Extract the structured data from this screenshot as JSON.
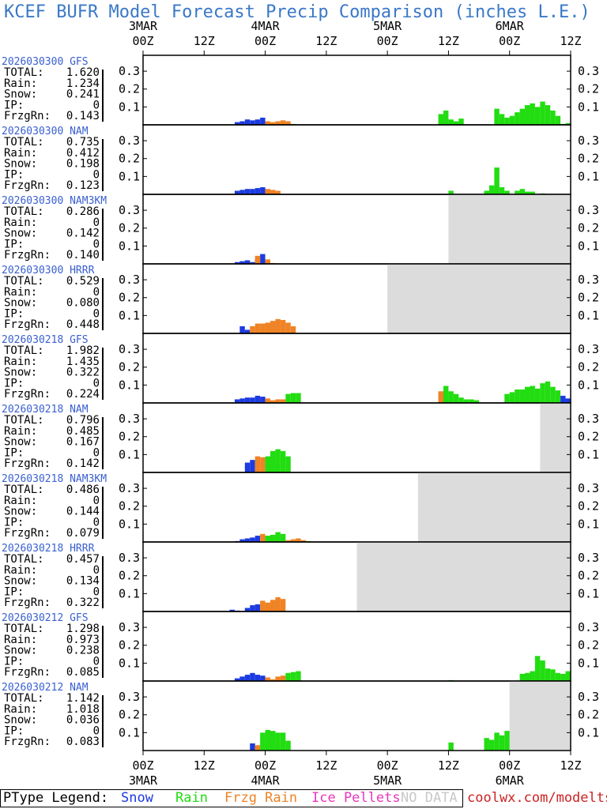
{
  "title": "KCEF BUFR Model Forecast Precip Comparison (inches L.E.)",
  "colors": {
    "title": "#3a78c8",
    "snow": "#1c3be0",
    "rain": "#22dd11",
    "frzg_rain": "#ef8325",
    "ice_pellets": "#ea36bd",
    "no_data": "#dcdcdc",
    "run_label": "#3a60d0",
    "brand": "#cc2222"
  },
  "legend": {
    "prefix": "PType Legend:",
    "items": [
      "Snow",
      "Rain",
      "Frzg Rain",
      "Ice Pellets",
      "NO DATA"
    ]
  },
  "brand": "coolwx.com/modelts",
  "chart_data": {
    "type": "bar",
    "time_ticks_top": [
      "00Z",
      "12Z",
      "00Z",
      "12Z",
      "00Z",
      "12Z",
      "00Z",
      "12Z"
    ],
    "day_labels_top": [
      "3MAR",
      "4MAR",
      "5MAR",
      "6MAR"
    ],
    "time_ticks_bottom": [
      "00Z",
      "12Z",
      "00Z",
      "12Z",
      "00Z",
      "12Z",
      "00Z",
      "12Z"
    ],
    "day_labels_bottom": [
      "3MAR",
      "4MAR",
      "5MAR",
      "6MAR"
    ],
    "x_range_hours": [
      0,
      84
    ],
    "y_ticks": [
      "0.3",
      "0.2",
      "0.1"
    ],
    "ylim": [
      0,
      0.38
    ],
    "stat_labels": [
      "TOTAL:",
      "Rain:",
      "Snow:",
      "IP:",
      "FrzgRn:"
    ],
    "panels": [
      {
        "run": "2026030300 GFS",
        "totals": [
          "1.620",
          "1.234",
          "0.241",
          "0",
          "0.143"
        ],
        "no_data_from_hour": null,
        "bars": {
          "snow": [
            [
              18,
              0.015
            ],
            [
              19,
              0.02
            ],
            [
              20,
              0.03
            ],
            [
              21,
              0.025
            ],
            [
              22,
              0.03
            ],
            [
              23,
              0.04
            ]
          ],
          "frzg_rain": [
            [
              24,
              0.02
            ],
            [
              25,
              0.015
            ],
            [
              26,
              0.02
            ],
            [
              27,
              0.025
            ],
            [
              28,
              0.02
            ]
          ],
          "rain": [
            [
              29,
              0.005
            ],
            [
              58,
              0.06
            ],
            [
              59,
              0.08
            ],
            [
              60,
              0.03
            ],
            [
              61,
              0.02
            ],
            [
              62,
              0.035
            ],
            [
              69,
              0.09
            ],
            [
              70,
              0.06
            ],
            [
              71,
              0.04
            ],
            [
              72,
              0.05
            ],
            [
              73,
              0.07
            ],
            [
              74,
              0.09
            ],
            [
              75,
              0.11
            ],
            [
              76,
              0.12
            ],
            [
              77,
              0.1
            ],
            [
              78,
              0.13
            ],
            [
              79,
              0.11
            ],
            [
              80,
              0.08
            ],
            [
              81,
              0.05
            ],
            [
              82,
              0.005
            ],
            [
              83,
              0.01
            ]
          ]
        }
      },
      {
        "run": "2026030300 NAM",
        "totals": [
          "0.735",
          "0.412",
          "0.198",
          "0",
          "0.123"
        ],
        "no_data_from_hour": null,
        "bars": {
          "snow": [
            [
              18,
              0.02
            ],
            [
              19,
              0.025
            ],
            [
              20,
              0.03
            ],
            [
              21,
              0.03
            ],
            [
              22,
              0.035
            ],
            [
              23,
              0.04
            ]
          ],
          "frzg_rain": [
            [
              24,
              0.03
            ],
            [
              25,
              0.025
            ],
            [
              26,
              0.02
            ]
          ],
          "rain": [
            [
              60,
              0.02
            ],
            [
              67,
              0.02
            ],
            [
              68,
              0.05
            ],
            [
              69,
              0.15
            ],
            [
              70,
              0.04
            ],
            [
              71,
              0.02
            ],
            [
              73,
              0.02
            ],
            [
              74,
              0.03
            ],
            [
              75,
              0.015
            ],
            [
              76,
              0.015
            ],
            [
              78,
              0.005
            ]
          ]
        }
      },
      {
        "run": "2026030300 NAM3KM",
        "totals": [
          "0.286",
          "0",
          "0.142",
          "0",
          "0.140"
        ],
        "no_data_from_hour": 60,
        "bars": {
          "snow": [
            [
              18,
              0.01
            ],
            [
              19,
              0.015
            ],
            [
              20,
              0.02
            ],
            [
              21,
              0.01
            ],
            [
              22,
              0.03
            ],
            [
              23,
              0.055
            ]
          ],
          "frzg_rain": [
            [
              22,
              0.045
            ],
            [
              24,
              0.025
            ],
            [
              25,
              0.005
            ]
          ]
        }
      },
      {
        "run": "2026030300 HRRR",
        "totals": [
          "0.529",
          "0",
          "0.080",
          "0",
          "0.448"
        ],
        "no_data_from_hour": 48,
        "bars": {
          "snow": [
            [
              19,
              0.04
            ],
            [
              20,
              0.02
            ]
          ],
          "frzg_rain": [
            [
              21,
              0.04
            ],
            [
              22,
              0.055
            ],
            [
              23,
              0.055
            ],
            [
              24,
              0.06
            ],
            [
              25,
              0.07
            ],
            [
              26,
              0.08
            ],
            [
              27,
              0.075
            ],
            [
              28,
              0.06
            ],
            [
              29,
              0.04
            ]
          ]
        }
      },
      {
        "run": "2026030218 GFS",
        "totals": [
          "1.982",
          "1.435",
          "0.322",
          "0",
          "0.224"
        ],
        "no_data_from_hour": null,
        "bars": {
          "snow": [
            [
              18,
              0.02
            ],
            [
              19,
              0.025
            ],
            [
              20,
              0.03
            ],
            [
              21,
              0.03
            ],
            [
              22,
              0.04
            ],
            [
              23,
              0.035
            ]
          ],
          "frzg_rain": [
            [
              24,
              0.025
            ],
            [
              25,
              0.015
            ],
            [
              26,
              0.02
            ],
            [
              27,
              0.02
            ],
            [
              58,
              0.065
            ]
          ],
          "rain": [
            [
              28,
              0.05
            ],
            [
              29,
              0.055
            ],
            [
              30,
              0.055
            ],
            [
              59,
              0.095
            ],
            [
              60,
              0.065
            ],
            [
              61,
              0.05
            ],
            [
              62,
              0.03
            ],
            [
              63,
              0.02
            ],
            [
              64,
              0.02
            ],
            [
              65,
              0.015
            ],
            [
              71,
              0.05
            ],
            [
              72,
              0.06
            ],
            [
              73,
              0.075
            ],
            [
              74,
              0.075
            ],
            [
              75,
              0.09
            ],
            [
              76,
              0.095
            ],
            [
              77,
              0.08
            ],
            [
              78,
              0.11
            ],
            [
              79,
              0.12
            ],
            [
              80,
              0.09
            ],
            [
              81,
              0.07
            ]
          ],
          "snow_late": [
            [
              82,
              0.04
            ],
            [
              83,
              0.025
            ]
          ]
        }
      },
      {
        "run": "2026030218 NAM",
        "totals": [
          "0.796",
          "0.485",
          "0.167",
          "0",
          "0.142"
        ],
        "no_data_from_hour": 78,
        "bars": {
          "snow": [
            [
              20,
              0.055
            ],
            [
              21,
              0.07
            ]
          ],
          "frzg_rain": [
            [
              22,
              0.09
            ],
            [
              23,
              0.085
            ]
          ],
          "rain": [
            [
              24,
              0.09
            ],
            [
              25,
              0.12
            ],
            [
              26,
              0.13
            ],
            [
              27,
              0.12
            ],
            [
              28,
              0.09
            ]
          ]
        }
      },
      {
        "run": "2026030218 NAM3KM",
        "totals": [
          "0.486",
          "0",
          "0.144",
          "0",
          "0.079"
        ],
        "no_data_from_hour": 54,
        "bars": {
          "snow": [
            [
              18,
              0.005
            ],
            [
              19,
              0.015
            ],
            [
              20,
              0.02
            ],
            [
              21,
              0.025
            ],
            [
              22,
              0.035
            ]
          ],
          "frzg_rain": [
            [
              23,
              0.045
            ]
          ],
          "rain": [
            [
              24,
              0.035
            ],
            [
              25,
              0.04
            ],
            [
              26,
              0.055
            ],
            [
              27,
              0.045
            ],
            [
              29,
              0.01
            ],
            [
              30,
              0.005
            ],
            [
              32,
              0.005
            ]
          ],
          "frzg_rain_late": [
            [
              28,
              0.01
            ],
            [
              29,
              0.015
            ],
            [
              30,
              0.02
            ],
            [
              31,
              0.01
            ]
          ]
        }
      },
      {
        "run": "2026030218 HRRR",
        "totals": [
          "0.457",
          "0",
          "0.134",
          "0",
          "0.322"
        ],
        "no_data_from_hour": 42,
        "bars": {
          "snow": [
            [
              17,
              0.01
            ],
            [
              18,
              0.005
            ],
            [
              20,
              0.02
            ],
            [
              21,
              0.035
            ],
            [
              22,
              0.04
            ]
          ],
          "frzg_rain": [
            [
              23,
              0.06
            ],
            [
              24,
              0.05
            ],
            [
              25,
              0.065
            ],
            [
              26,
              0.08
            ],
            [
              27,
              0.07
            ]
          ]
        }
      },
      {
        "run": "2026030212 GFS",
        "totals": [
          "1.298",
          "0.973",
          "0.238",
          "0",
          "0.085"
        ],
        "no_data_from_hour": null,
        "bars": {
          "snow": [
            [
              18,
              0.015
            ],
            [
              19,
              0.025
            ],
            [
              20,
              0.035
            ],
            [
              21,
              0.045
            ],
            [
              22,
              0.035
            ],
            [
              23,
              0.03
            ]
          ],
          "frzg_rain": [
            [
              24,
              0.02
            ],
            [
              25,
              0.01
            ],
            [
              26,
              0.025
            ],
            [
              27,
              0.03
            ]
          ],
          "rain": [
            [
              28,
              0.045
            ],
            [
              29,
              0.05
            ],
            [
              30,
              0.055
            ],
            [
              60,
              0.005
            ],
            [
              74,
              0.04
            ],
            [
              75,
              0.045
            ],
            [
              76,
              0.055
            ],
            [
              77,
              0.14
            ],
            [
              78,
              0.115
            ],
            [
              79,
              0.07
            ],
            [
              80,
              0.065
            ],
            [
              81,
              0.045
            ],
            [
              82,
              0.04
            ],
            [
              83,
              0.055
            ]
          ]
        }
      },
      {
        "run": "2026030212 NAM",
        "totals": [
          "1.142",
          "1.018",
          "0.036",
          "0",
          "0.083"
        ],
        "no_data_from_hour": 72,
        "bars": {
          "snow": [
            [
              21,
              0.04
            ]
          ],
          "frzg_rain": [
            [
              22,
              0.03
            ]
          ],
          "rain": [
            [
              23,
              0.1
            ],
            [
              24,
              0.115
            ],
            [
              25,
              0.11
            ],
            [
              26,
              0.1
            ],
            [
              27,
              0.1
            ],
            [
              28,
              0.055
            ],
            [
              60,
              0.045
            ],
            [
              67,
              0.07
            ],
            [
              68,
              0.06
            ],
            [
              69,
              0.1
            ],
            [
              70,
              0.085
            ],
            [
              71,
              0.11
            ]
          ]
        }
      }
    ]
  }
}
